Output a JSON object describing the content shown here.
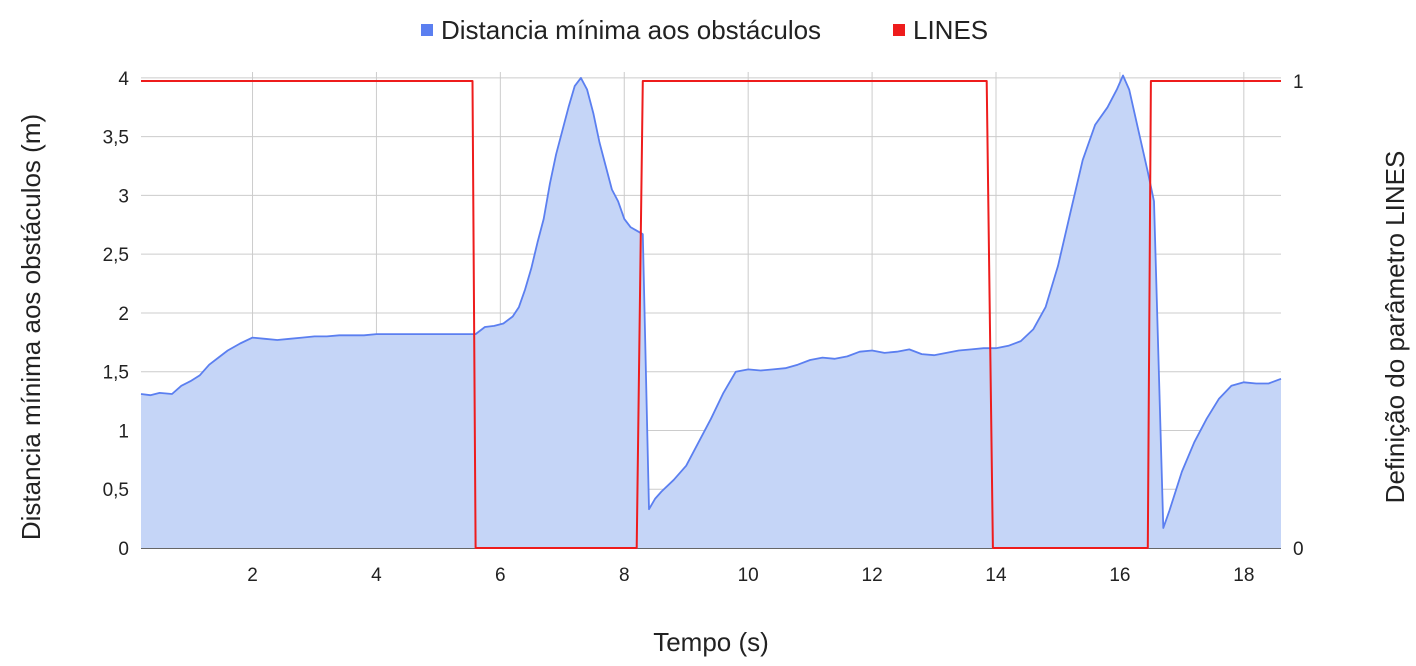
{
  "chart_data": {
    "type": "area",
    "xlabel": "Tempo (s)",
    "ylabel": "Distancia mínima aos obstáculos (m)",
    "y2label": "Definição do parâmetro LINES",
    "xlim": [
      0.2,
      18.6
    ],
    "ylim": [
      0,
      4.05
    ],
    "y2lim": [
      0,
      1
    ],
    "x_ticks": [
      2,
      4,
      6,
      8,
      10,
      12,
      14,
      16,
      18
    ],
    "y_ticks": [
      0,
      0.5,
      1,
      1.5,
      2,
      2.5,
      3,
      3.5,
      4
    ],
    "y_tick_labels": [
      "0",
      "0,5",
      "1",
      "1,5",
      "2",
      "2,5",
      "3",
      "3,5",
      "4"
    ],
    "y2_ticks": [
      0,
      1
    ],
    "y2_tick_labels": [
      "0",
      "1"
    ],
    "grid": true,
    "legend": "top",
    "series": [
      {
        "name": "Distancia mínima aos obstáculos",
        "axis": "left",
        "kind": "area",
        "color": "#5b7ff0",
        "fill": "#c5d5f7",
        "points": [
          [
            0.2,
            1.31
          ],
          [
            0.35,
            1.3
          ],
          [
            0.5,
            1.32
          ],
          [
            0.7,
            1.31
          ],
          [
            0.85,
            1.38
          ],
          [
            1.0,
            1.42
          ],
          [
            1.15,
            1.47
          ],
          [
            1.3,
            1.56
          ],
          [
            1.45,
            1.62
          ],
          [
            1.6,
            1.68
          ],
          [
            1.8,
            1.74
          ],
          [
            2.0,
            1.79
          ],
          [
            2.2,
            1.78
          ],
          [
            2.4,
            1.77
          ],
          [
            2.6,
            1.78
          ],
          [
            2.8,
            1.79
          ],
          [
            3.0,
            1.8
          ],
          [
            3.2,
            1.8
          ],
          [
            3.4,
            1.81
          ],
          [
            3.6,
            1.81
          ],
          [
            3.8,
            1.81
          ],
          [
            4.0,
            1.82
          ],
          [
            4.2,
            1.82
          ],
          [
            4.4,
            1.82
          ],
          [
            4.6,
            1.82
          ],
          [
            4.8,
            1.82
          ],
          [
            5.0,
            1.82
          ],
          [
            5.2,
            1.82
          ],
          [
            5.4,
            1.82
          ],
          [
            5.6,
            1.82
          ],
          [
            5.75,
            1.88
          ],
          [
            5.9,
            1.89
          ],
          [
            6.05,
            1.91
          ],
          [
            6.2,
            1.97
          ],
          [
            6.3,
            2.05
          ],
          [
            6.4,
            2.2
          ],
          [
            6.5,
            2.38
          ],
          [
            6.6,
            2.6
          ],
          [
            6.7,
            2.8
          ],
          [
            6.8,
            3.1
          ],
          [
            6.9,
            3.35
          ],
          [
            7.0,
            3.55
          ],
          [
            7.1,
            3.75
          ],
          [
            7.2,
            3.93
          ],
          [
            7.3,
            4.0
          ],
          [
            7.4,
            3.9
          ],
          [
            7.5,
            3.7
          ],
          [
            7.6,
            3.45
          ],
          [
            7.7,
            3.25
          ],
          [
            7.8,
            3.05
          ],
          [
            7.9,
            2.95
          ],
          [
            8.0,
            2.8
          ],
          [
            8.1,
            2.73
          ],
          [
            8.2,
            2.7
          ],
          [
            8.3,
            2.67
          ],
          [
            8.4,
            0.33
          ],
          [
            8.5,
            0.42
          ],
          [
            8.6,
            0.48
          ],
          [
            8.8,
            0.58
          ],
          [
            9.0,
            0.7
          ],
          [
            9.2,
            0.9
          ],
          [
            9.4,
            1.1
          ],
          [
            9.6,
            1.32
          ],
          [
            9.8,
            1.5
          ],
          [
            10.0,
            1.52
          ],
          [
            10.2,
            1.51
          ],
          [
            10.4,
            1.52
          ],
          [
            10.6,
            1.53
          ],
          [
            10.8,
            1.56
          ],
          [
            11.0,
            1.6
          ],
          [
            11.2,
            1.62
          ],
          [
            11.4,
            1.61
          ],
          [
            11.6,
            1.63
          ],
          [
            11.8,
            1.67
          ],
          [
            12.0,
            1.68
          ],
          [
            12.2,
            1.66
          ],
          [
            12.4,
            1.67
          ],
          [
            12.6,
            1.69
          ],
          [
            12.8,
            1.65
          ],
          [
            13.0,
            1.64
          ],
          [
            13.2,
            1.66
          ],
          [
            13.4,
            1.68
          ],
          [
            13.6,
            1.69
          ],
          [
            13.8,
            1.7
          ],
          [
            14.0,
            1.7
          ],
          [
            14.2,
            1.72
          ],
          [
            14.4,
            1.76
          ],
          [
            14.6,
            1.86
          ],
          [
            14.8,
            2.05
          ],
          [
            15.0,
            2.4
          ],
          [
            15.2,
            2.85
          ],
          [
            15.4,
            3.3
          ],
          [
            15.6,
            3.6
          ],
          [
            15.8,
            3.75
          ],
          [
            15.95,
            3.9
          ],
          [
            16.05,
            4.02
          ],
          [
            16.15,
            3.9
          ],
          [
            16.3,
            3.55
          ],
          [
            16.45,
            3.2
          ],
          [
            16.55,
            2.95
          ],
          [
            16.7,
            0.17
          ],
          [
            16.8,
            0.32
          ],
          [
            17.0,
            0.65
          ],
          [
            17.2,
            0.9
          ],
          [
            17.4,
            1.1
          ],
          [
            17.6,
            1.27
          ],
          [
            17.8,
            1.38
          ],
          [
            18.0,
            1.41
          ],
          [
            18.2,
            1.4
          ],
          [
            18.4,
            1.4
          ],
          [
            18.6,
            1.44
          ]
        ]
      },
      {
        "name": "LINES",
        "axis": "right",
        "kind": "line",
        "color": "#ee1c1c",
        "points": [
          [
            0.2,
            1
          ],
          [
            5.55,
            1
          ],
          [
            5.6,
            0
          ],
          [
            8.2,
            0
          ],
          [
            8.3,
            1
          ],
          [
            13.85,
            1
          ],
          [
            13.95,
            0
          ],
          [
            16.45,
            0
          ],
          [
            16.5,
            1
          ],
          [
            18.6,
            1
          ]
        ]
      }
    ]
  }
}
